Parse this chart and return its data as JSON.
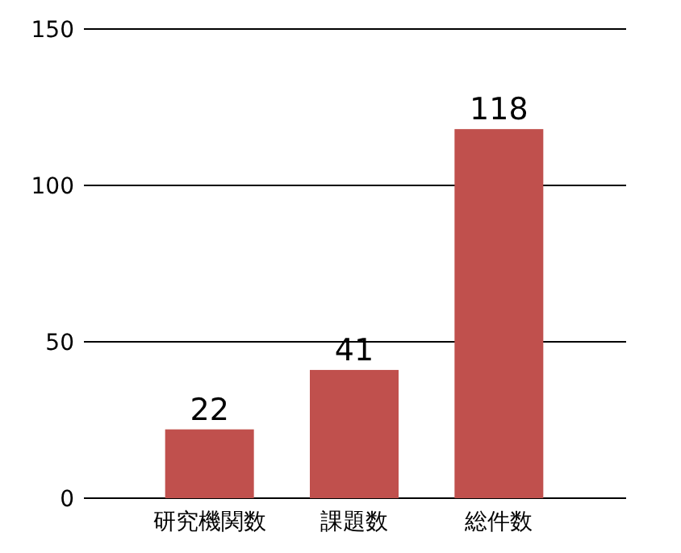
{
  "chart_data": {
    "type": "bar",
    "categories": [
      "研究機関数",
      "課題数",
      "総件数"
    ],
    "values": [
      22,
      41,
      118
    ],
    "color": "#c0504d",
    "ylim": [
      0,
      150
    ],
    "yticks": [
      0,
      50,
      100,
      150
    ],
    "grid": "y",
    "data_labels": true
  }
}
